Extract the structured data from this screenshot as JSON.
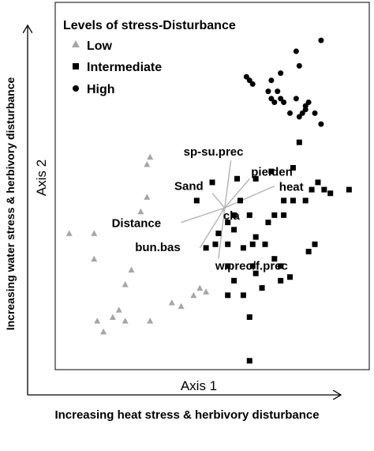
{
  "chart_data": {
    "type": "scatter",
    "title": "",
    "legend": {
      "title": "Levels of stress-Disturbance",
      "placement": "top-left",
      "entries": [
        {
          "name": "Low",
          "marker": "triangle",
          "color": "#a6a6a6"
        },
        {
          "name": "Intermediate",
          "marker": "square",
          "color": "#000000"
        },
        {
          "name": "High",
          "marker": "circle",
          "color": "#000000"
        }
      ]
    },
    "xlabel": "Axis 1",
    "ylabel": "Axis 2",
    "outer_xlabel": "Increasing heat stress & herbivory disturbance",
    "outer_ylabel": "Increasing  water stress & herbivory  disturbance",
    "xlim": [
      0,
      100
    ],
    "ylim": [
      0,
      100
    ],
    "grid": false,
    "series": [
      {
        "name": "Low",
        "marker": "triangle",
        "color": "#a6a6a6",
        "x": [
          30,
          29,
          29,
          27,
          4,
          12,
          12,
          24,
          22,
          20,
          22,
          13,
          15,
          18,
          30,
          40,
          37,
          44,
          46,
          48
        ],
        "y": [
          58,
          56,
          47,
          43,
          37,
          37,
          30,
          27,
          23,
          16,
          13,
          13,
          10,
          14,
          13,
          17,
          18,
          20,
          22,
          21
        ]
      },
      {
        "name": "Intermediate",
        "marker": "square",
        "color": "#000000",
        "x": [
          78,
          76,
          69,
          64,
          58,
          50,
          45,
          59,
          62,
          57,
          55,
          57,
          52,
          51,
          48,
          55,
          60,
          63,
          64,
          67,
          68,
          70,
          73,
          76,
          80,
          73,
          82,
          84,
          86,
          88,
          94,
          55,
          57,
          63,
          64,
          70,
          72,
          81,
          83,
          55,
          60,
          66,
          72,
          75,
          62,
          62
        ],
        "y": [
          62,
          55,
          54,
          52,
          52,
          51,
          46,
          46,
          42,
          42,
          40,
          38,
          37,
          34,
          33,
          34,
          33,
          34,
          36,
          34,
          40,
          42,
          46,
          46,
          46,
          42,
          49,
          51,
          49,
          48,
          49,
          28,
          24,
          28,
          26,
          30,
          28,
          32,
          34,
          20,
          20,
          22,
          24,
          25,
          14,
          2
        ]
      },
      {
        "name": "High",
        "marker": "circle",
        "color": "#000000",
        "x": [
          85,
          77,
          78,
          72,
          61,
          62,
          63,
          69,
          71,
          72,
          70,
          73,
          75,
          69,
          68,
          77,
          80,
          83,
          85,
          78,
          79,
          80,
          81
        ],
        "y": [
          90,
          87,
          83,
          81,
          80,
          79,
          78,
          79,
          76,
          74,
          73,
          73,
          70,
          74,
          76,
          74,
          72,
          70,
          67,
          69,
          70,
          71,
          73
        ]
      }
    ],
    "vectors": [
      {
        "name": "sp-su.prec",
        "x": 56,
        "y": 57
      },
      {
        "name": "Sand",
        "x": 50,
        "y": 48
      },
      {
        "name": "pie.den",
        "x": 62,
        "y": 52
      },
      {
        "name": "heat",
        "x": 70,
        "y": 50
      },
      {
        "name": "Distance",
        "x": 40,
        "y": 40
      },
      {
        "name": "cla",
        "x": 53,
        "y": 43
      },
      {
        "name": "bun.bas",
        "x": 46,
        "y": 33
      },
      {
        "name": "w.prec/f.prec",
        "x": 52,
        "y": 30
      }
    ],
    "vector_origin": {
      "x": 54,
      "y": 44
    }
  }
}
